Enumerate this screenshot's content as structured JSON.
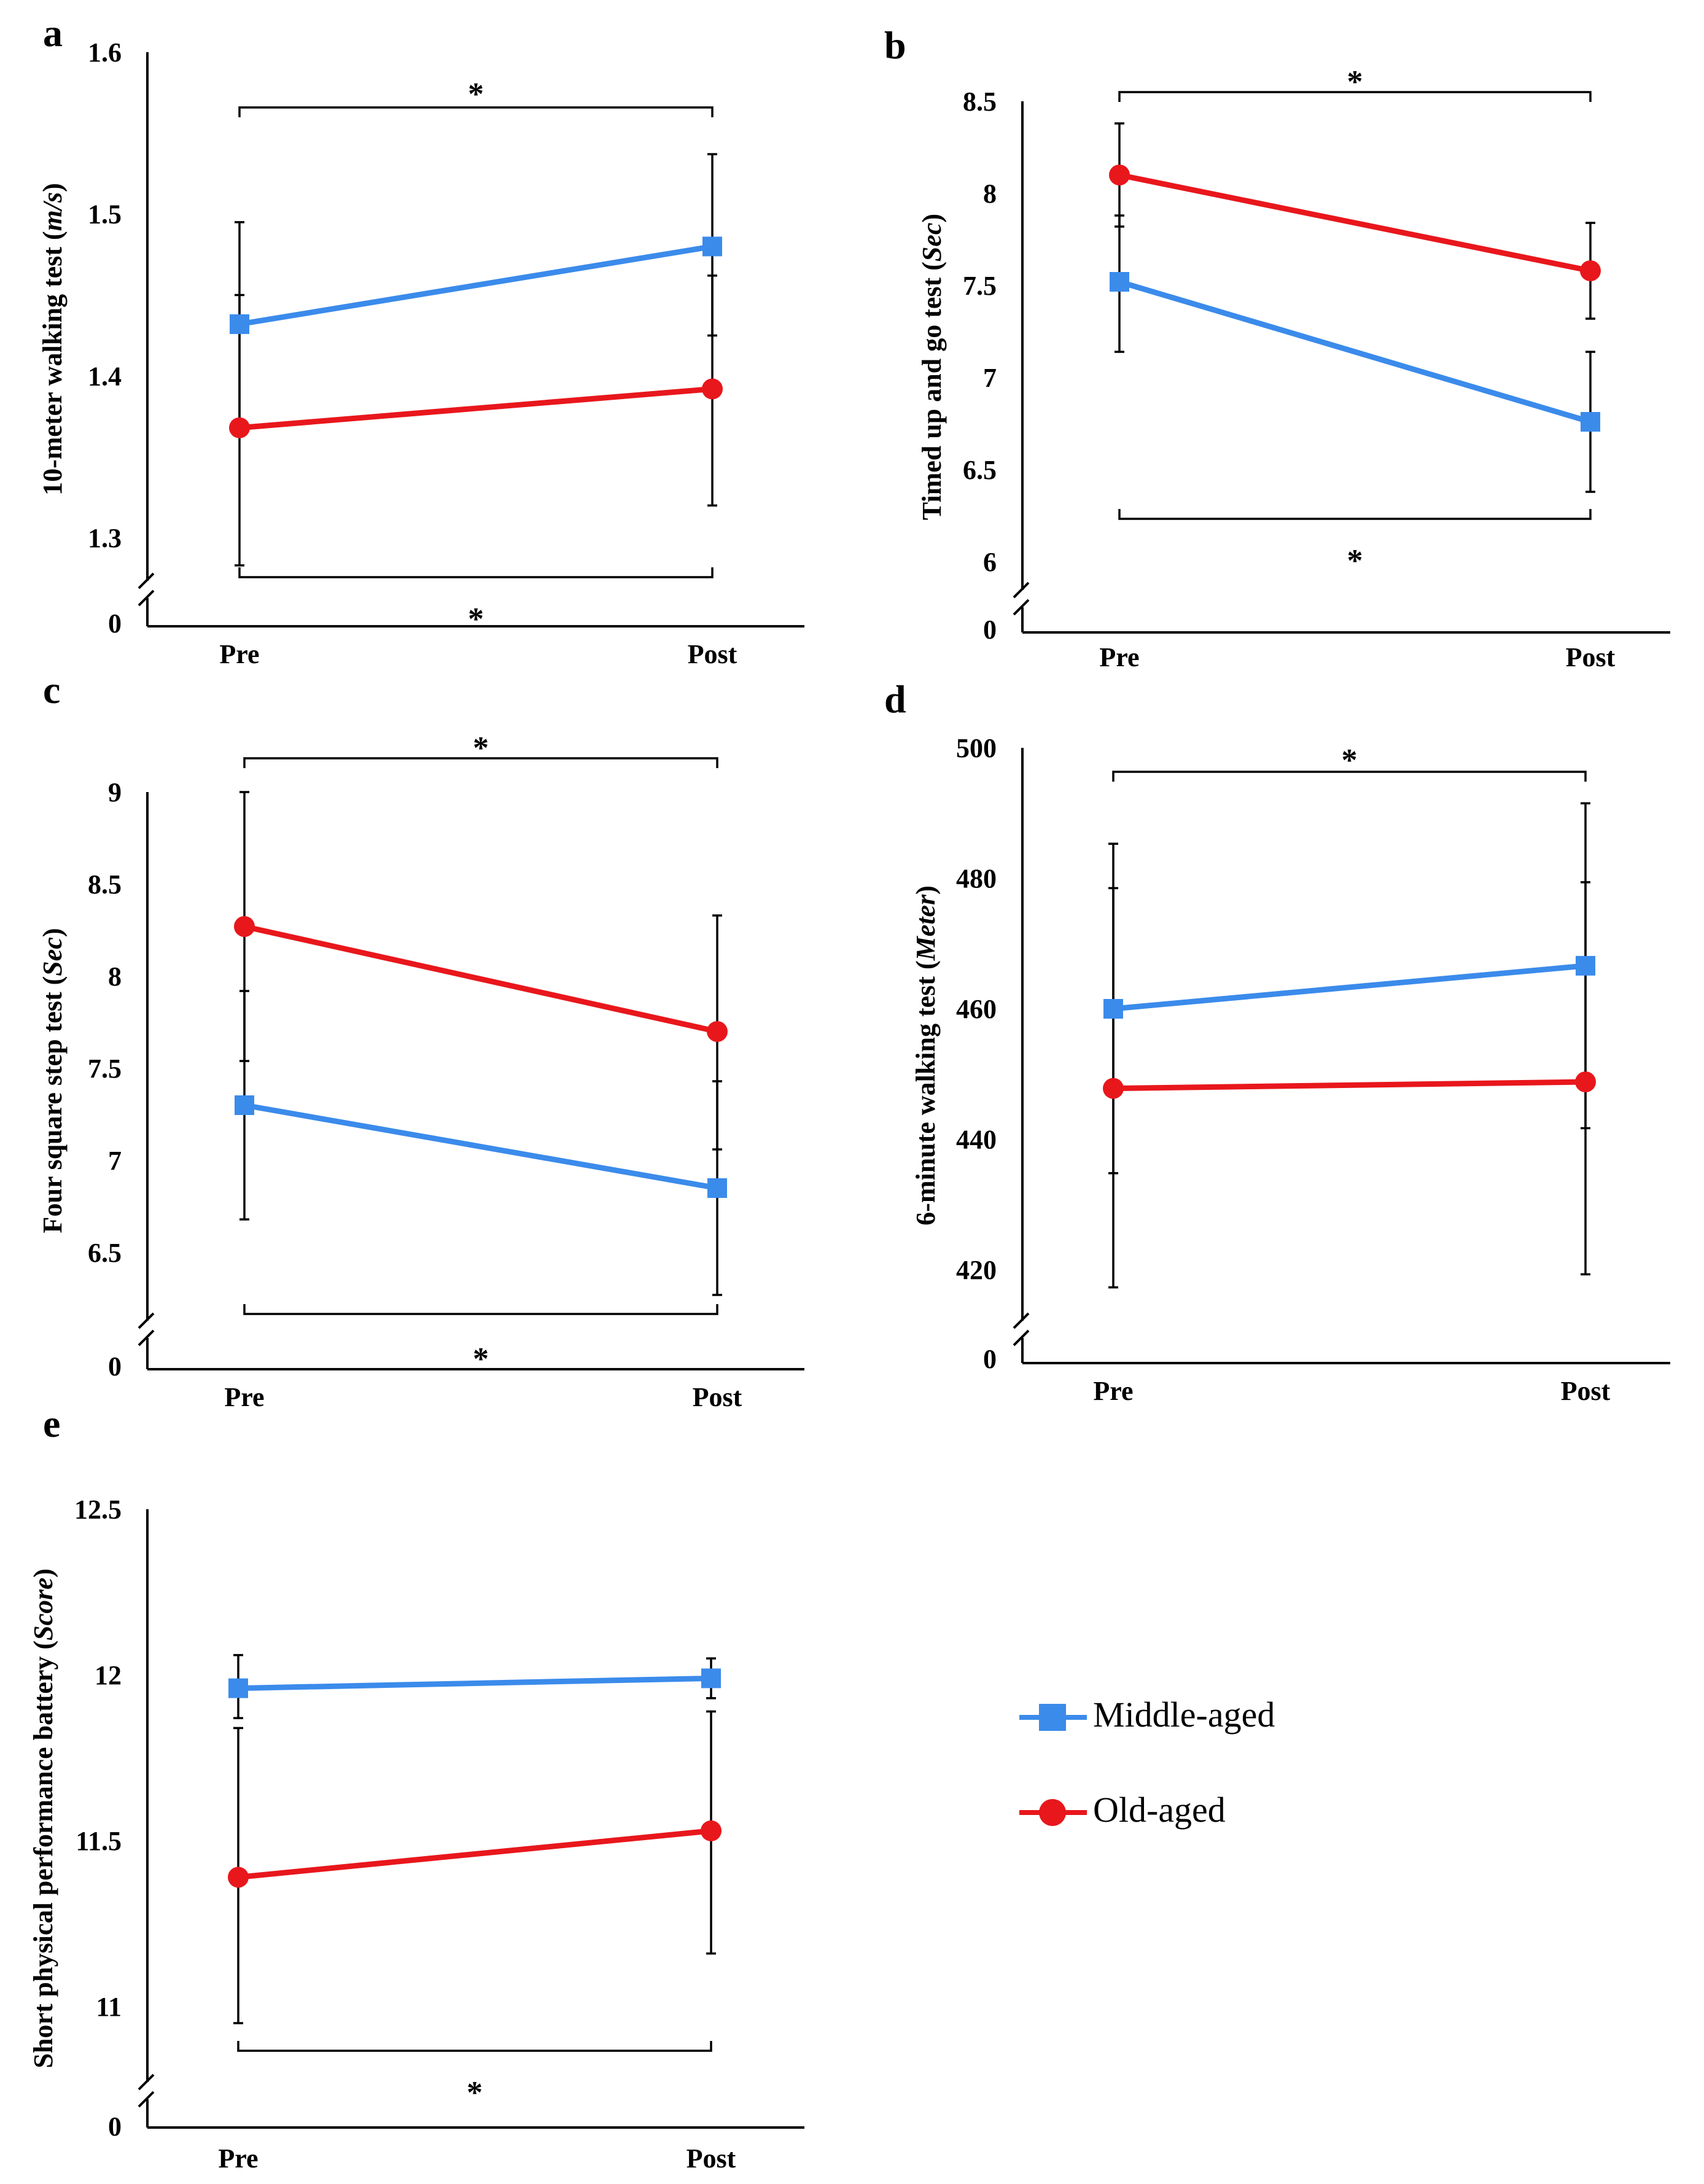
{
  "legend": {
    "middle_label": "Middle-aged",
    "old_label": "Old-aged",
    "middle_color": "#3b8beb",
    "old_color": "#e8171c",
    "middle_marker": "square",
    "old_marker": "circle"
  },
  "chart_data": [
    {
      "panel": "a",
      "type": "line",
      "ylabel": "10-meter walking test",
      "yunit": "m/s",
      "categories": [
        "Pre",
        "Post"
      ],
      "yticks": [
        "1.3",
        "1.4",
        "1.5",
        "1.6"
      ],
      "ylim": [
        1.3,
        1.6
      ],
      "axis_break_label": "0",
      "series": [
        {
          "name": "Middle-aged",
          "values": [
            1.432,
            1.48
          ],
          "err_low": [
            1.368,
            1.425
          ],
          "err_high": [
            1.495,
            1.537
          ]
        },
        {
          "name": "Old-aged",
          "values": [
            1.368,
            1.392
          ],
          "err_low": [
            1.283,
            1.32
          ],
          "err_high": [
            1.45,
            1.462
          ]
        }
      ],
      "sig_top": "*",
      "sig_bottom": "*"
    },
    {
      "panel": "b",
      "type": "line",
      "ylabel": "Timed up and go test",
      "yunit": "Sec",
      "categories": [
        "Pre",
        "Post"
      ],
      "yticks": [
        "6",
        "6.5",
        "7",
        "7.5",
        "8",
        "8.5"
      ],
      "ylim": [
        6,
        8.5
      ],
      "axis_break_label": "0",
      "series": [
        {
          "name": "Middle-aged",
          "values": [
            7.52,
            6.76
          ],
          "err_low": [
            7.14,
            6.38
          ],
          "err_high": [
            7.88,
            7.14
          ]
        },
        {
          "name": "Old-aged",
          "values": [
            8.1,
            7.58
          ],
          "err_low": [
            7.82,
            7.32
          ],
          "err_high": [
            8.38,
            7.84
          ]
        }
      ],
      "sig_top": "*",
      "sig_bottom": "*"
    },
    {
      "panel": "c",
      "type": "line",
      "ylabel": "Four square step test",
      "yunit": "Sec",
      "categories": [
        "Pre",
        "Post"
      ],
      "yticks": [
        "6.5",
        "7",
        "7.5",
        "8",
        "8.5",
        "9"
      ],
      "ylim": [
        6.5,
        9
      ],
      "axis_break_label": "0",
      "series": [
        {
          "name": "Middle-aged",
          "values": [
            7.3,
            6.85
          ],
          "err_low": [
            6.68,
            6.27
          ],
          "err_high": [
            7.92,
            7.43
          ]
        },
        {
          "name": "Old-aged",
          "values": [
            8.27,
            7.7
          ],
          "err_low": [
            7.54,
            7.06
          ],
          "err_high": [
            9.0,
            8.33
          ]
        }
      ],
      "sig_top": "*",
      "sig_bottom": "*"
    },
    {
      "panel": "d",
      "type": "line",
      "ylabel": "6-minute walking test",
      "yunit": "Meter",
      "categories": [
        "Pre",
        "Post"
      ],
      "yticks": [
        "420",
        "440",
        "460",
        "480",
        "500"
      ],
      "ylim": [
        420,
        500
      ],
      "axis_break_label": "0",
      "series": [
        {
          "name": "Middle-aged",
          "values": [
            460,
            466.6
          ],
          "err_low": [
            434.8,
            441.7
          ],
          "err_high": [
            485.3,
            491.5
          ]
        },
        {
          "name": "Old-aged",
          "values": [
            447.8,
            448.8
          ],
          "err_low": [
            417.3,
            419.3
          ],
          "err_high": [
            478.5,
            479.4
          ]
        }
      ],
      "sig_top": "*",
      "sig_bottom": ""
    },
    {
      "panel": "e",
      "type": "line",
      "ylabel": "Short physical performance battery",
      "yunit": "Score",
      "categories": [
        "Pre",
        "Post"
      ],
      "yticks": [
        "11",
        "11.5",
        "12",
        "12.5"
      ],
      "ylim": [
        11,
        12.5
      ],
      "axis_break_label": "0",
      "series": [
        {
          "name": "Middle-aged",
          "values": [
            11.96,
            11.99
          ],
          "err_low": [
            11.87,
            11.93
          ],
          "err_high": [
            12.06,
            12.05
          ]
        },
        {
          "name": "Old-aged",
          "values": [
            11.39,
            11.53
          ],
          "err_low": [
            10.95,
            11.16
          ],
          "err_high": [
            11.84,
            11.89
          ]
        }
      ],
      "sig_top": "",
      "sig_bottom": "*"
    }
  ]
}
